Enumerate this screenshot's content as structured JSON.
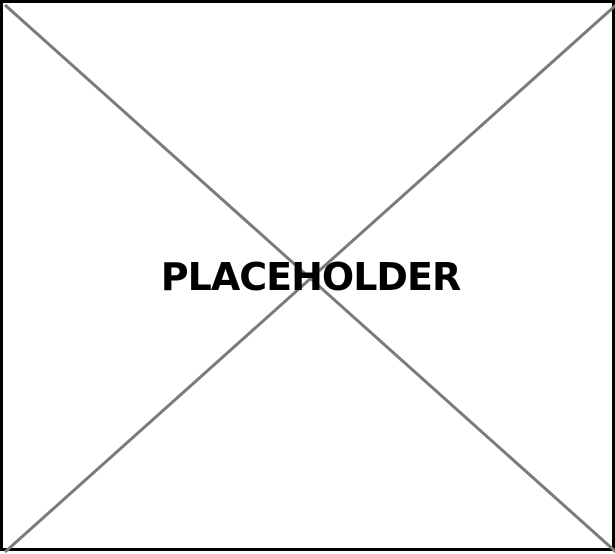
{
  "placeholder": {
    "label": "PLACEHOLDER",
    "colors": {
      "background": "#ffffff",
      "border": "#000000",
      "cross": "#7a7a7a",
      "text": "#000000"
    }
  }
}
